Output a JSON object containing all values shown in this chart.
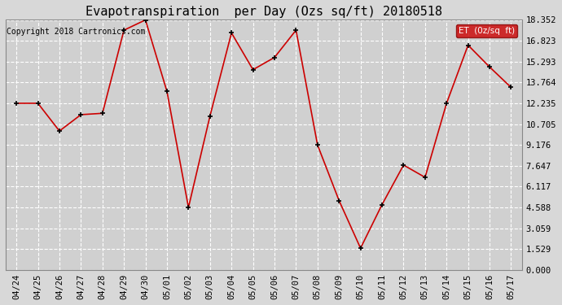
{
  "title": "Evapotranspiration  per Day (Ozs sq/ft) 20180518",
  "copyright": "Copyright 2018 Cartronics.com",
  "legend_label": "ET  (0z/sq  ft)",
  "legend_bg": "#cc0000",
  "legend_text_color": "#ffffff",
  "x_labels": [
    "04/24",
    "04/25",
    "04/26",
    "04/27",
    "04/28",
    "04/29",
    "04/30",
    "05/01",
    "05/02",
    "05/03",
    "05/04",
    "05/05",
    "05/06",
    "05/07",
    "05/08",
    "05/09",
    "05/10",
    "05/11",
    "05/12",
    "05/13",
    "05/14",
    "05/15",
    "05/16",
    "05/17"
  ],
  "y_values": [
    12.235,
    12.235,
    10.2,
    11.4,
    11.5,
    17.6,
    18.352,
    13.1,
    4.588,
    11.3,
    17.4,
    14.7,
    15.6,
    17.6,
    9.176,
    5.1,
    1.6,
    4.8,
    7.7,
    6.8,
    12.235,
    16.5,
    14.9,
    13.4
  ],
  "y_ticks": [
    0.0,
    1.529,
    3.059,
    4.588,
    6.117,
    7.647,
    9.176,
    10.705,
    12.235,
    13.764,
    15.293,
    16.823,
    18.352
  ],
  "ylim": [
    0.0,
    18.352
  ],
  "line_color": "#cc0000",
  "marker_color": "#000000",
  "bg_color": "#d8d8d8",
  "plot_bg_color": "#d0d0d0",
  "grid_color": "#ffffff",
  "title_fontsize": 11,
  "copyright_fontsize": 7,
  "tick_fontsize": 7.5
}
